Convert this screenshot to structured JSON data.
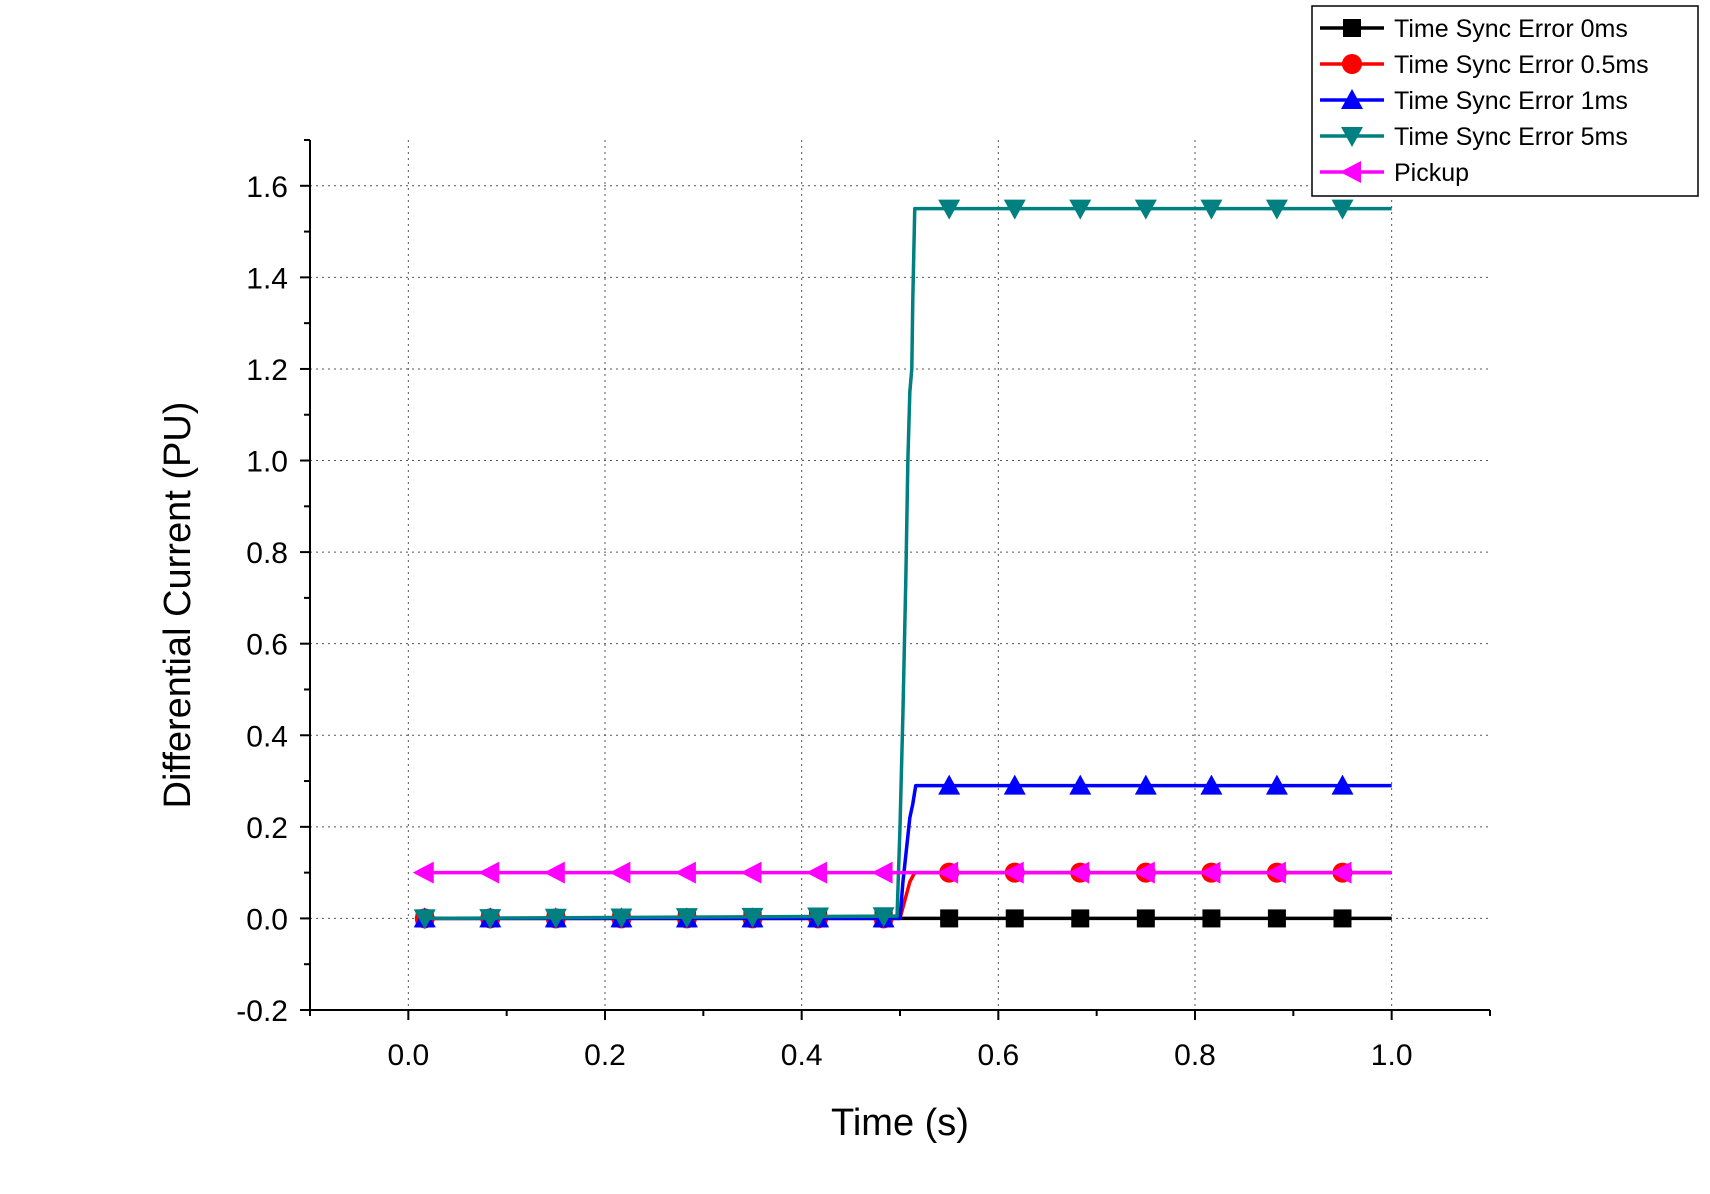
{
  "chart_data": {
    "type": "line",
    "title": "",
    "xlabel": "Time (s)",
    "ylabel": "Differential Current (PU)",
    "xlim": [
      -0.1,
      1.1
    ],
    "ylim": [
      -0.2,
      1.7
    ],
    "x_ticks": [
      "0.0",
      "0.2",
      "0.4",
      "0.6",
      "0.8",
      "1.0"
    ],
    "x_tick_values": [
      0,
      0.2,
      0.4,
      0.6,
      0.8,
      1.0
    ],
    "y_ticks": [
      "-0.2",
      "0.0",
      "0.2",
      "0.4",
      "0.6",
      "0.8",
      "1.0",
      "1.2",
      "1.4",
      "1.6"
    ],
    "y_tick_values": [
      -0.2,
      0,
      0.2,
      0.4,
      0.6,
      0.8,
      1.0,
      1.2,
      1.4,
      1.6
    ],
    "grid": true,
    "legend_position": "top-right",
    "marker_x": [
      0.0167,
      0.0833,
      0.15,
      0.2167,
      0.2833,
      0.35,
      0.4167,
      0.4833,
      0.55,
      0.6167,
      0.6833,
      0.75,
      0.8167,
      0.8833,
      0.95
    ],
    "series": [
      {
        "name": "Time Sync Error 0ms",
        "color": "#000000",
        "marker": "square",
        "x": [
          0.0167,
          0.5,
          0.5,
          1.0
        ],
        "y": [
          0.0,
          0.0,
          0.0,
          0.0
        ]
      },
      {
        "name": "Time Sync Error 0.5ms",
        "color": "#ff0000",
        "marker": "circle",
        "x": [
          0.0167,
          0.5,
          0.505,
          0.51,
          0.515,
          1.0
        ],
        "y": [
          0.0,
          0.0,
          0.04,
          0.08,
          0.1,
          0.1
        ]
      },
      {
        "name": "Time Sync Error 1ms",
        "color": "#0000ff",
        "marker": "triangle-up",
        "x": [
          0.0167,
          0.5,
          0.503,
          0.507,
          0.51,
          0.513,
          0.516,
          1.0
        ],
        "y": [
          0.0,
          0.0,
          0.08,
          0.16,
          0.22,
          0.25,
          0.29,
          0.29
        ]
      },
      {
        "name": "Time Sync Error 5ms",
        "color": "#008080",
        "marker": "triangle-down",
        "x": [
          0.0167,
          0.497,
          0.5,
          0.503,
          0.506,
          0.508,
          0.51,
          0.512,
          0.513,
          0.515,
          1.0
        ],
        "y": [
          0.0,
          0.005,
          0.2,
          0.45,
          0.75,
          1.0,
          1.15,
          1.2,
          1.35,
          1.55,
          1.55
        ]
      },
      {
        "name": "Pickup",
        "color": "#ff00ff",
        "marker": "triangle-left",
        "x": [
          0.0167,
          1.0
        ],
        "y": [
          0.1,
          0.1
        ]
      }
    ]
  }
}
